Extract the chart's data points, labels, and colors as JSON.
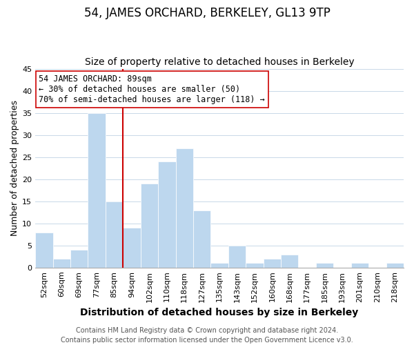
{
  "title": "54, JAMES ORCHARD, BERKELEY, GL13 9TP",
  "subtitle": "Size of property relative to detached houses in Berkeley",
  "xlabel": "Distribution of detached houses by size in Berkeley",
  "ylabel": "Number of detached properties",
  "footer_lines": [
    "Contains HM Land Registry data © Crown copyright and database right 2024.",
    "Contains public sector information licensed under the Open Government Licence v3.0."
  ],
  "bin_labels": [
    "52sqm",
    "60sqm",
    "69sqm",
    "77sqm",
    "85sqm",
    "94sqm",
    "102sqm",
    "110sqm",
    "118sqm",
    "127sqm",
    "135sqm",
    "143sqm",
    "152sqm",
    "160sqm",
    "168sqm",
    "177sqm",
    "185sqm",
    "193sqm",
    "201sqm",
    "210sqm",
    "218sqm"
  ],
  "bar_heights": [
    8,
    2,
    4,
    35,
    15,
    9,
    19,
    24,
    27,
    13,
    1,
    5,
    1,
    2,
    3,
    0,
    1,
    0,
    1,
    0,
    1
  ],
  "bar_color": "#bdd7ee",
  "bar_edge_color": "#ffffff",
  "subject_line_color": "#cc0000",
  "annotation_line1": "54 JAMES ORCHARD: 89sqm",
  "annotation_line2": "← 30% of detached houses are smaller (50)",
  "annotation_line3": "70% of semi-detached houses are larger (118) →",
  "annotation_box_color": "#ffffff",
  "annotation_box_edge": "#cc0000",
  "ylim": [
    0,
    45
  ],
  "yticks": [
    0,
    5,
    10,
    15,
    20,
    25,
    30,
    35,
    40,
    45
  ],
  "background_color": "#ffffff",
  "grid_color": "#c8d8e8",
  "title_fontsize": 12,
  "subtitle_fontsize": 10,
  "xlabel_fontsize": 10,
  "ylabel_fontsize": 9,
  "tick_fontsize": 8,
  "annotation_fontsize": 8.5,
  "footer_fontsize": 7
}
